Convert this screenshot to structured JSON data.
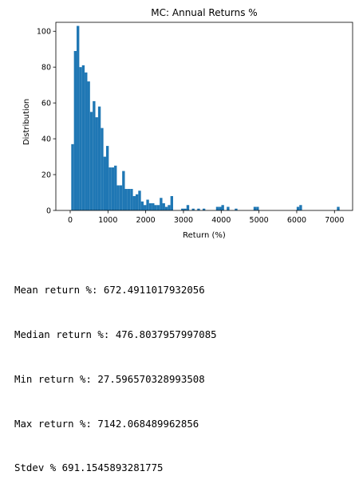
{
  "chart_data": {
    "type": "bar",
    "title": "MC: Annual Returns %",
    "xlabel": "Return (%)",
    "ylabel": "Distribution",
    "xlim": [
      -380,
      7480
    ],
    "ylim": [
      0,
      105
    ],
    "xticks": [
      0,
      1000,
      2000,
      3000,
      4000,
      5000,
      6000,
      7000
    ],
    "yticks": [
      0,
      20,
      40,
      60,
      80,
      100
    ],
    "grid": false,
    "bar_color": "#1f77b4",
    "bin_width": 71,
    "bin_starts": [
      28,
      99,
      170,
      241,
      312,
      383,
      454,
      525,
      596,
      667,
      738,
      809,
      880,
      951,
      1022,
      1093,
      1164,
      1235,
      1306,
      1377,
      1448,
      1519,
      1590,
      1661,
      1732,
      1803,
      1874,
      1945,
      2016,
      2087,
      2158,
      2229,
      2300,
      2371,
      2442,
      2513,
      2584,
      2655,
      2939,
      3010,
      3081,
      3223,
      3365,
      3507,
      3862,
      3933,
      4004,
      4146,
      4359,
      4856,
      4927,
      5998,
      6069,
      7064
    ],
    "counts": [
      37,
      89,
      103,
      80,
      81,
      77,
      72,
      55,
      61,
      52,
      58,
      46,
      30,
      36,
      24,
      24,
      25,
      14,
      14,
      22,
      12,
      12,
      12,
      8,
      9,
      11,
      5,
      3,
      6,
      4,
      4,
      3,
      3,
      7,
      4,
      2,
      3,
      8,
      1,
      1,
      3,
      1,
      1,
      1,
      2,
      2,
      3,
      2,
      1,
      2,
      2,
      2,
      3,
      2
    ]
  },
  "stats": {
    "mean": "Mean return %: 672.4911017932056",
    "median": "Median return %: 476.8037957997085",
    "min": "Min return %: 27.596570328993508",
    "max": "Max return %: 7142.068489962856",
    "stdev": "Stdev % 691.1545893281775"
  }
}
